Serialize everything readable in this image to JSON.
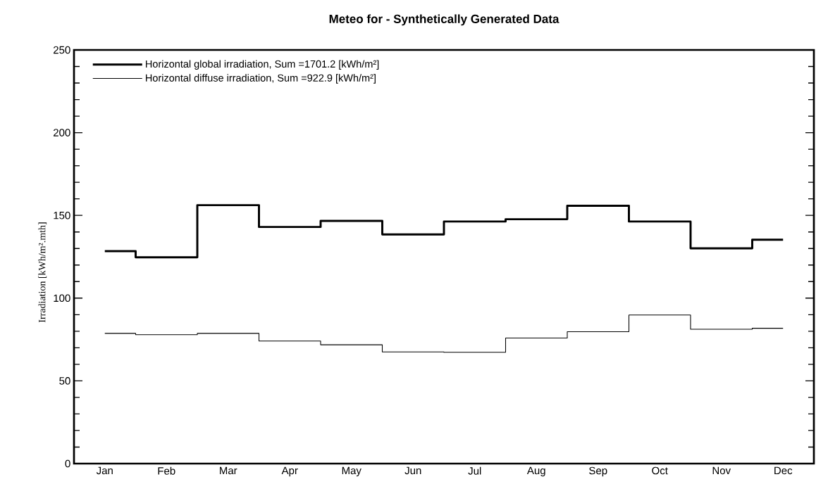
{
  "chart_data": {
    "type": "step",
    "title": "Meteo for  -  Synthetically Generated Data",
    "ylabel": "Irradiation [kWh/m².mth]",
    "categories": [
      "Jan",
      "Feb",
      "Mar",
      "Apr",
      "May",
      "Jun",
      "Jul",
      "Aug",
      "Sep",
      "Oct",
      "Nov",
      "Dec"
    ],
    "series": [
      {
        "name": "Horizontal global irradiation,  Sum =1701.2 [kWh/m²]",
        "color": "#000000",
        "values": [
          128.4,
          124.7,
          156.2,
          143.0,
          146.7,
          138.5,
          146.3,
          147.7,
          155.8,
          146.3,
          130.1,
          135.3
        ]
      },
      {
        "name": "Horizontal diffuse irradiation,  Sum =922.9 [kWh/m²]",
        "color": "#000000",
        "values": [
          78.7,
          77.9,
          78.7,
          74.1,
          71.8,
          67.5,
          67.3,
          75.9,
          79.7,
          89.8,
          81.2,
          81.8
        ]
      }
    ],
    "ylim": [
      0,
      250
    ],
    "yticks": [
      0,
      {
        "value": 10,
        "label": null
      },
      {
        "value": 20,
        "label": null
      },
      {
        "value": 30,
        "label": null
      },
      {
        "value": 40,
        "label": null
      },
      50,
      {
        "value": 60,
        "label": null
      },
      {
        "value": 70,
        "label": null
      },
      {
        "value": 80,
        "label": null
      },
      {
        "value": 90,
        "label": null
      },
      100,
      {
        "value": 110,
        "label": null
      },
      {
        "value": 120,
        "label": null
      },
      {
        "value": 130,
        "label": null
      },
      {
        "value": 140,
        "label": null
      },
      150,
      {
        "value": 160,
        "label": null
      },
      {
        "value": 170,
        "label": null
      },
      {
        "value": 180,
        "label": null
      },
      {
        "value": 190,
        "label": null
      },
      200,
      {
        "value": 210,
        "label": null
      },
      {
        "value": 220,
        "label": null
      },
      {
        "value": 230,
        "label": null
      },
      {
        "value": 240,
        "label": null
      },
      250
    ],
    "legend": "top left"
  }
}
